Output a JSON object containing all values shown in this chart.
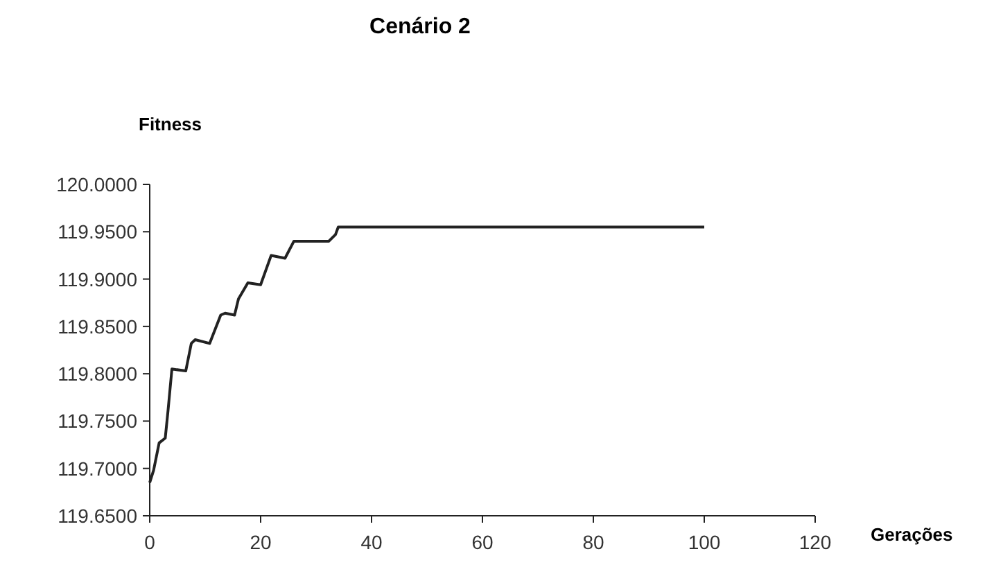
{
  "chart_data": {
    "type": "line",
    "title": "Cenário 2",
    "xlabel": "Gerações",
    "ylabel": "Fitness",
    "xlim": [
      0,
      120
    ],
    "xticks": [
      0,
      20,
      40,
      60,
      80,
      100,
      120
    ],
    "ylim": [
      119.65,
      120.0
    ],
    "yticks": [
      {
        "value": 119.65,
        "label": "119.6500"
      },
      {
        "value": 119.7,
        "label": "119.7000"
      },
      {
        "value": 119.75,
        "label": "119.7500"
      },
      {
        "value": 119.8,
        "label": "119.8000"
      },
      {
        "value": 119.85,
        "label": "119.8500"
      },
      {
        "value": 119.9,
        "label": "119.9000"
      },
      {
        "value": 119.95,
        "label": "119.9500"
      },
      {
        "value": 120.0,
        "label": "120.0000"
      }
    ],
    "grid": false,
    "marker": "none",
    "line_style": "solid",
    "series": [
      {
        "color": "#222222",
        "x": [
          0,
          0.7,
          1.7,
          2.8,
          3.3,
          4,
          6.5,
          7.5,
          8.2,
          10.8,
          12.8,
          13.6,
          15.3,
          16,
          17.7,
          20,
          21.9,
          24.4,
          26,
          32.3,
          33.5,
          34,
          100
        ],
        "values": [
          119.685,
          119.698,
          119.727,
          119.732,
          119.761,
          119.805,
          119.803,
          119.832,
          119.836,
          119.832,
          119.862,
          119.864,
          119.862,
          119.879,
          119.896,
          119.894,
          119.925,
          119.922,
          119.94,
          119.94,
          119.947,
          119.955,
          119.955
        ]
      }
    ]
  }
}
